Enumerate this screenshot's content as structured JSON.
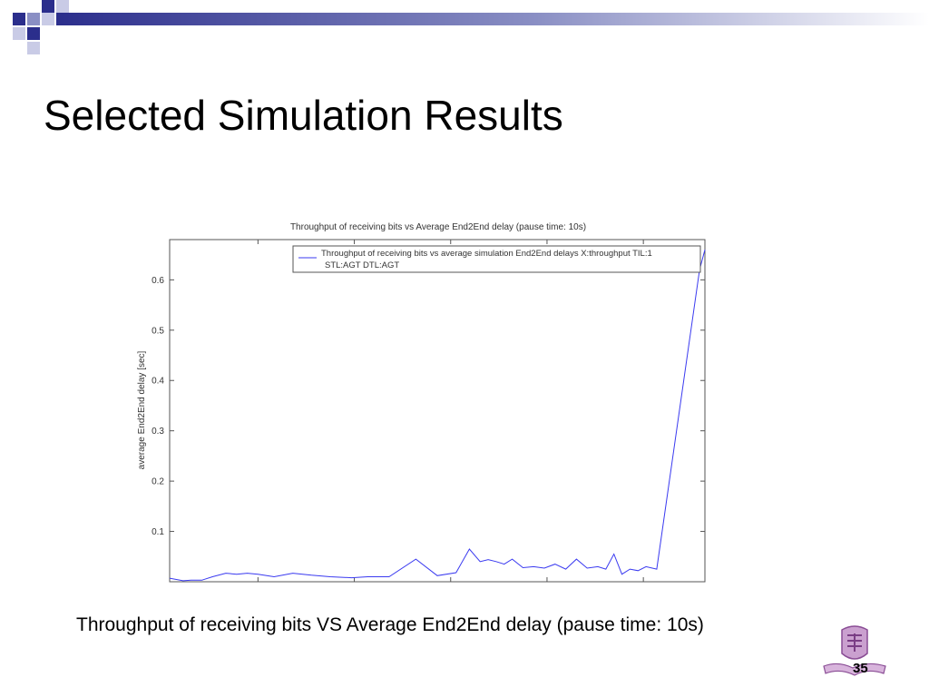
{
  "slide": {
    "title": "Selected Simulation Results",
    "caption": "Throughput of receiving bits VS Average End2End delay (pause time: 10s)",
    "page_number": "35"
  },
  "theme": {
    "accent": "#2b2e8c",
    "accent_light": "#8a8fc4",
    "line_color": "#3a3af0"
  },
  "chart_data": {
    "type": "line",
    "title": "Throughput of receiving bits vs Average End2End delay (pause time: 10s)",
    "xlabel": "",
    "ylabel": "average End2End delay [sec]",
    "ylim": [
      0,
      0.68
    ],
    "yticks": [
      0.1,
      0.2,
      0.3,
      0.4,
      0.5,
      0.6
    ],
    "ytick_labels": [
      "0.1",
      "0.2",
      "0.3",
      "0.4",
      "0.5",
      "0.6"
    ],
    "xlim": [
      0,
      100
    ],
    "xticks": [
      16.5,
      34.5,
      52.5,
      70.5,
      88.5
    ],
    "grid": false,
    "legend": {
      "placement": "top-right",
      "line1": "Throughput of receiving bits vs average simulation End2End delays X:throughput TIL:1",
      "line2": "STL:AGT DTL:AGT"
    },
    "series": [
      {
        "name": "Throughput of receiving bits vs average simulation End2End delays X:throughput TIL:1 STL:AGT DTL:AGT",
        "x": [
          0,
          2.5,
          4,
          6,
          8,
          10.5,
          12.5,
          14.5,
          16.5,
          19.5,
          23,
          26.5,
          30,
          34,
          37,
          41,
          46,
          50,
          53.5,
          56,
          58,
          59.5,
          61,
          62.5,
          64,
          66,
          68,
          70,
          72,
          74,
          76,
          78,
          80,
          81.5,
          83,
          84.5,
          86,
          87.5,
          89,
          91,
          99,
          100
        ],
        "y": [
          0.007,
          0.002,
          0.003,
          0.003,
          0.01,
          0.017,
          0.015,
          0.017,
          0.015,
          0.01,
          0.017,
          0.013,
          0.01,
          0.008,
          0.01,
          0.01,
          0.045,
          0.012,
          0.018,
          0.065,
          0.04,
          0.044,
          0.04,
          0.035,
          0.045,
          0.028,
          0.03,
          0.027,
          0.035,
          0.025,
          0.045,
          0.027,
          0.03,
          0.025,
          0.055,
          0.015,
          0.025,
          0.022,
          0.03,
          0.025,
          0.62,
          0.66
        ]
      }
    ]
  }
}
